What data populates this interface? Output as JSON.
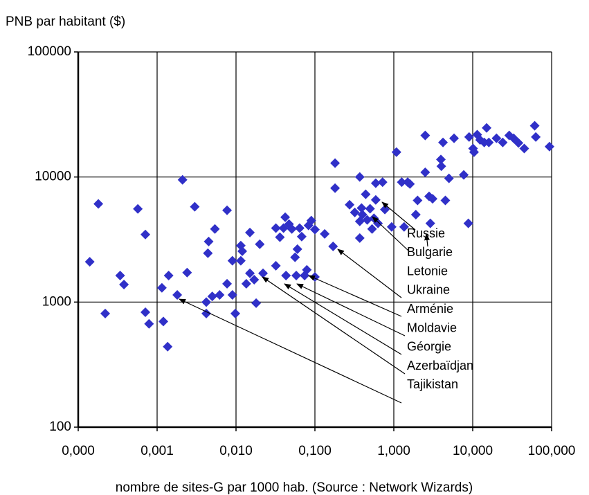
{
  "chart_data": {
    "type": "scatter",
    "title": "PNB par habitant ($)",
    "x_label": "nombre de sites-G par 1000 hab. (Source : Network Wizards)",
    "x_log": true,
    "y_log": true,
    "grid": true,
    "color": "#3030c8",
    "xlim": [
      0.0001,
      100
    ],
    "ylim": [
      100,
      100000
    ],
    "xticks": [
      {
        "value": 0.0001,
        "label": "0,000"
      },
      {
        "value": 0.001,
        "label": "0,001"
      },
      {
        "value": 0.01,
        "label": "0,010"
      },
      {
        "value": 0.1,
        "label": "0,100"
      },
      {
        "value": 1,
        "label": "1,000"
      },
      {
        "value": 10,
        "label": "10,000"
      },
      {
        "value": 100,
        "label": "100,000"
      }
    ],
    "yticks": [
      100,
      1000,
      10000,
      100000
    ],
    "x": [
      0.00014,
      0.00018,
      0.00022,
      0.00034,
      0.00038,
      0.00057,
      0.00071,
      0.00071,
      0.00079,
      0.00115,
      0.0012,
      0.00136,
      0.0014,
      0.0018,
      0.0021,
      0.0024,
      0.003,
      0.0042,
      0.0042,
      0.0044,
      0.0045,
      0.005,
      0.0054,
      0.0062,
      0.0077,
      0.0077,
      0.009,
      0.009,
      0.0098,
      0.0115,
      0.0115,
      0.012,
      0.0135,
      0.015,
      0.015,
      0.017,
      0.018,
      0.02,
      0.022,
      0.032,
      0.032,
      0.036,
      0.04,
      0.042,
      0.043,
      0.047,
      0.051,
      0.056,
      0.06,
      0.058,
      0.064,
      0.068,
      0.074,
      0.079,
      0.083,
      0.09,
      0.1,
      0.1,
      0.133,
      0.17,
      0.18,
      0.18,
      0.275,
      0.32,
      0.37,
      0.37,
      0.37,
      0.39,
      0.4,
      0.44,
      0.46,
      0.5,
      0.53,
      0.56,
      0.59,
      0.63,
      0.59,
      0.72,
      0.77,
      0.94,
      1.08,
      1.26,
      1.35,
      1.5,
      1.6,
      1.9,
      2.0,
      2.5,
      2.5,
      2.8,
      2.9,
      3.1,
      3.95,
      4.0,
      4.2,
      4.5,
      5.0,
      5.8,
      7.7,
      8.8,
      9.0,
      10.1,
      10.4,
      11.4,
      12.4,
      14,
      15,
      16,
      20,
      24,
      29,
      33,
      38,
      45,
      61,
      63,
      94
    ],
    "values": [
      2100,
      6100,
      810,
      1630,
      1380,
      5560,
      3470,
      830,
      670,
      1300,
      700,
      440,
      1630,
      1140,
      9500,
      1720,
      5780,
      1000,
      810,
      2460,
      3050,
      1110,
      3840,
      1140,
      5420,
      1400,
      2140,
      1140,
      810,
      2140,
      2830,
      2550,
      1400,
      3600,
      1700,
      1510,
      980,
      2900,
      1700,
      1950,
      3900,
      3300,
      3900,
      4770,
      1630,
      4200,
      3840,
      2280,
      2650,
      1630,
      3900,
      3340,
      1630,
      1810,
      4100,
      4480,
      1590,
      3800,
      3510,
      2790,
      12900,
      8150,
      6000,
      5210,
      10000,
      4420,
      3250,
      5650,
      5000,
      7270,
      4540,
      5580,
      3840,
      4680,
      6560,
      4260,
      8920,
      9100,
      5500,
      3990,
      15800,
      9100,
      3990,
      9100,
      8800,
      5000,
      6500,
      21500,
      10900,
      7000,
      4260,
      6700,
      13800,
      12200,
      18900,
      6500,
      9750,
      20400,
      10400,
      4260,
      20900,
      16900,
      15800,
      21800,
      19800,
      18900,
      24700,
      18900,
      20400,
      18900,
      21500,
      20400,
      18700,
      16900,
      25700,
      20900,
      17500
    ],
    "annotations": [
      "Russie",
      "Bulgarie",
      "Letonie",
      "Ukraine",
      "Arménie",
      "Moldavie",
      "Géorgie",
      "Azerbaïdjan",
      "Tajikistan"
    ]
  }
}
